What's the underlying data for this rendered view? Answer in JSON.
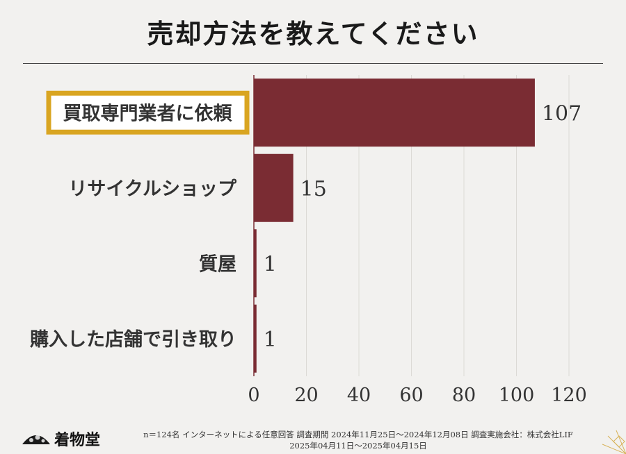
{
  "title": "売却方法を教えてください",
  "chart_data": {
    "type": "bar",
    "orientation": "horizontal",
    "categories": [
      "買取専門業者に依頼",
      "リサイクルショップ",
      "質屋",
      "購入した店舗で引き取り"
    ],
    "values": [
      107,
      15,
      1,
      1
    ],
    "highlighted_category": "買取専門業者に依頼",
    "xlim": [
      0,
      120
    ],
    "xticks": [
      0,
      20,
      40,
      60,
      80,
      100,
      120
    ],
    "grid": true,
    "bar_color": "#7a2c33",
    "highlight_color": "#d9a521"
  },
  "footer": {
    "logo_text": "着物堂",
    "note_line1": "n＝124名 インターネットによる任意回答 調査期間 2024年11月25日～2024年12月08日 調査実施会社：株式会社LIF",
    "note_line2": "2025年04月11日～2025年04月15日"
  }
}
